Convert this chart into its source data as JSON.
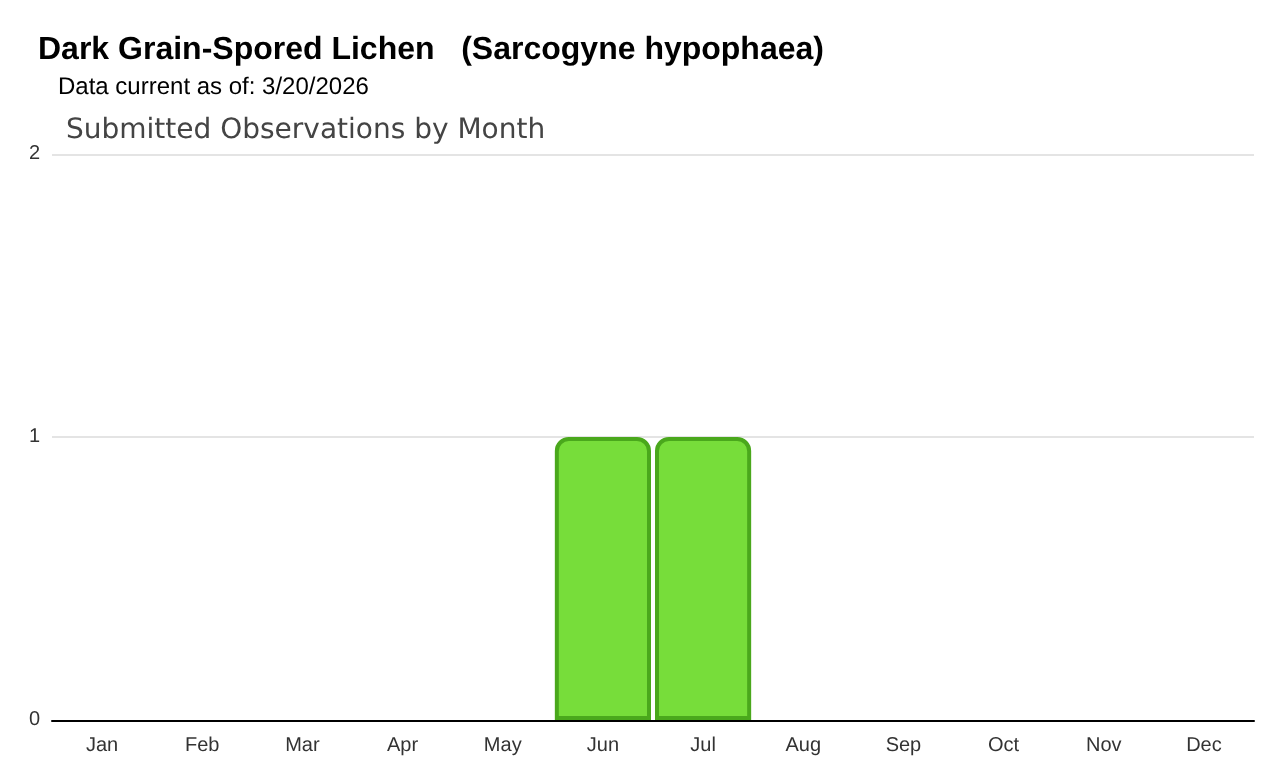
{
  "chart_data": {
    "type": "bar",
    "title": "Dark Grain-Spored Lichen   (Sarcogyne hypophaea)",
    "subtitle": "Data current as of: 3/20/2026",
    "annotations": [
      "Submitted Observations by Month"
    ],
    "categories": [
      "Jan",
      "Feb",
      "Mar",
      "Apr",
      "May",
      "Jun",
      "Jul",
      "Aug",
      "Sep",
      "Oct",
      "Nov",
      "Dec"
    ],
    "values": [
      0,
      0,
      0,
      0,
      0,
      1,
      1,
      0,
      0,
      0,
      0,
      0
    ],
    "color": "#77dd3a",
    "ylim": [
      0,
      2
    ],
    "yticks": [
      0,
      1,
      2
    ],
    "grid": "y"
  }
}
